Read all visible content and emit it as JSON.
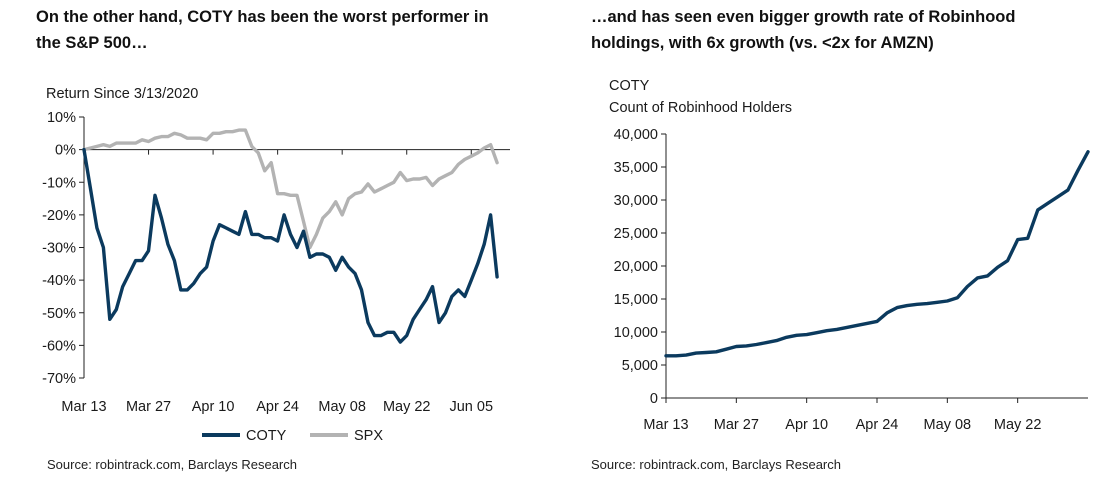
{
  "left": {
    "heading_line1": "On the other hand, COTY has been the worst performer in",
    "heading_line2": "the S&P 500…",
    "source": "Source: robintrack.com, Barclays Research"
  },
  "right": {
    "heading_line1": "…and has seen even bigger growth rate of Robinhood",
    "heading_line2": "holdings, with 6x growth (vs. <2x for AMZN)",
    "source": "Source: robintrack.com, Barclays Research"
  },
  "chart_data": [
    {
      "type": "line",
      "title": "Return Since 3/13/2020",
      "ylim": [
        -70,
        10
      ],
      "ytick_values": [
        10,
        0,
        -10,
        -20,
        -30,
        -40,
        -50,
        -60,
        -70
      ],
      "ytick_labels": [
        "10%",
        "0%",
        "-10%",
        "-20%",
        "-30%",
        "-40%",
        "-50%",
        "-60%",
        "-70%"
      ],
      "xlim": [
        0,
        66
      ],
      "xtick_values": [
        0,
        10,
        20,
        30,
        40,
        50,
        60
      ],
      "xtick_labels": [
        "Mar 13",
        "Mar 27",
        "Apr 10",
        "Apr 24",
        "May 08",
        "May 22",
        "Jun 05"
      ],
      "grid": false,
      "legend": "bottom-center",
      "series": [
        {
          "name": "COTY",
          "color": "#0b3a5e",
          "x": [
            0,
            1,
            2,
            3,
            4,
            5,
            6,
            7,
            8,
            9,
            10,
            11,
            12,
            13,
            14,
            15,
            16,
            17,
            18,
            19,
            20,
            21,
            22,
            23,
            24,
            25,
            26,
            27,
            28,
            29,
            30,
            31,
            32,
            33,
            34,
            35,
            36,
            37,
            38,
            39,
            40,
            41,
            42,
            43,
            44,
            45,
            46,
            47,
            48,
            49,
            50,
            51,
            52,
            53,
            54,
            55,
            56,
            57,
            58,
            59,
            60,
            61,
            62,
            63,
            64
          ],
          "values": [
            0,
            -12,
            -24,
            -30,
            -52,
            -49,
            -42,
            -38,
            -34,
            -34,
            -31,
            -14,
            -21,
            -29,
            -34,
            -43,
            -43,
            -41,
            -38,
            -36,
            -28,
            -23,
            -24,
            -25,
            -26,
            -19,
            -26,
            -26,
            -27,
            -27,
            -28,
            -20,
            -26,
            -30,
            -25,
            -33,
            -32,
            -32,
            -33,
            -37,
            -33,
            -36,
            -38,
            -43,
            -53,
            -57,
            -57,
            -56,
            -56,
            -59,
            -57,
            -52,
            -49,
            -46,
            -42,
            -53,
            -50,
            -45,
            -43,
            -45,
            -40,
            -35,
            -29,
            -20,
            -39
          ]
        },
        {
          "name": "SPX",
          "color": "#b3b3b3",
          "x": [
            0,
            1,
            2,
            3,
            4,
            5,
            6,
            7,
            8,
            9,
            10,
            11,
            12,
            13,
            14,
            15,
            16,
            17,
            18,
            19,
            20,
            21,
            22,
            23,
            24,
            25,
            26,
            27,
            28,
            29,
            30,
            31,
            32,
            33,
            34,
            35,
            36,
            37,
            38,
            39,
            40,
            41,
            42,
            43,
            44,
            45,
            46,
            47,
            48,
            49,
            50,
            51,
            52,
            53,
            54,
            55,
            56,
            57,
            58,
            59,
            60,
            61,
            62,
            63,
            64
          ],
          "values": [
            0,
            0.5,
            1,
            1.5,
            1,
            2,
            2,
            2,
            2,
            3,
            2.5,
            3.5,
            4,
            4,
            5,
            4.5,
            3.5,
            3.5,
            3.5,
            3,
            5,
            5,
            5.5,
            5.5,
            6,
            6,
            1,
            -1,
            -6.5,
            -4,
            -13.5,
            -13.5,
            -14,
            -14,
            -22,
            -30,
            -26,
            -21,
            -19,
            -16,
            -20,
            -15,
            -13.5,
            -13,
            -10.5,
            -13,
            -12,
            -11,
            -10,
            -7,
            -9.5,
            -9,
            -9,
            -8.5,
            -11,
            -9,
            -8,
            -7,
            -4.5,
            -3,
            -2,
            -1,
            0.5,
            1.5,
            -4
          ]
        }
      ]
    },
    {
      "type": "line",
      "title": "COTY",
      "subtitle": "Count of Robinhood Holders",
      "ylim": [
        0,
        40000
      ],
      "ytick_values": [
        40000,
        35000,
        30000,
        25000,
        20000,
        15000,
        10000,
        5000,
        0
      ],
      "ytick_labels": [
        "40,000",
        "35,000",
        "30,000",
        "25,000",
        "20,000",
        "15,000",
        "10,000",
        "5,000",
        "0"
      ],
      "xlim": [
        0,
        84
      ],
      "xtick_values": [
        0,
        14,
        28,
        42,
        56,
        70
      ],
      "xtick_labels": [
        "Mar 13",
        "Mar 27",
        "Apr 10",
        "Apr 24",
        "May 08",
        "May 22"
      ],
      "grid": false,
      "series": [
        {
          "name": "COTY",
          "color": "#0b3a5e",
          "x": [
            0,
            2,
            4,
            6,
            8,
            10,
            12,
            14,
            16,
            18,
            20,
            22,
            24,
            26,
            28,
            30,
            32,
            34,
            36,
            38,
            40,
            42,
            44,
            46,
            48,
            50,
            52,
            54,
            56,
            58,
            60,
            62,
            64,
            66,
            68,
            70,
            72,
            74,
            76,
            78,
            80,
            82,
            84
          ],
          "values": [
            6400,
            6400,
            6500,
            6800,
            6900,
            7000,
            7400,
            7800,
            7900,
            8100,
            8400,
            8700,
            9200,
            9500,
            9600,
            9900,
            10200,
            10400,
            10700,
            11000,
            11300,
            11600,
            12900,
            13700,
            14000,
            14200,
            14300,
            14500,
            14700,
            15200,
            16900,
            18200,
            18500,
            19800,
            20800,
            24000,
            24200,
            28500,
            29500,
            30500,
            31500,
            34500,
            37300
          ]
        }
      ]
    }
  ]
}
